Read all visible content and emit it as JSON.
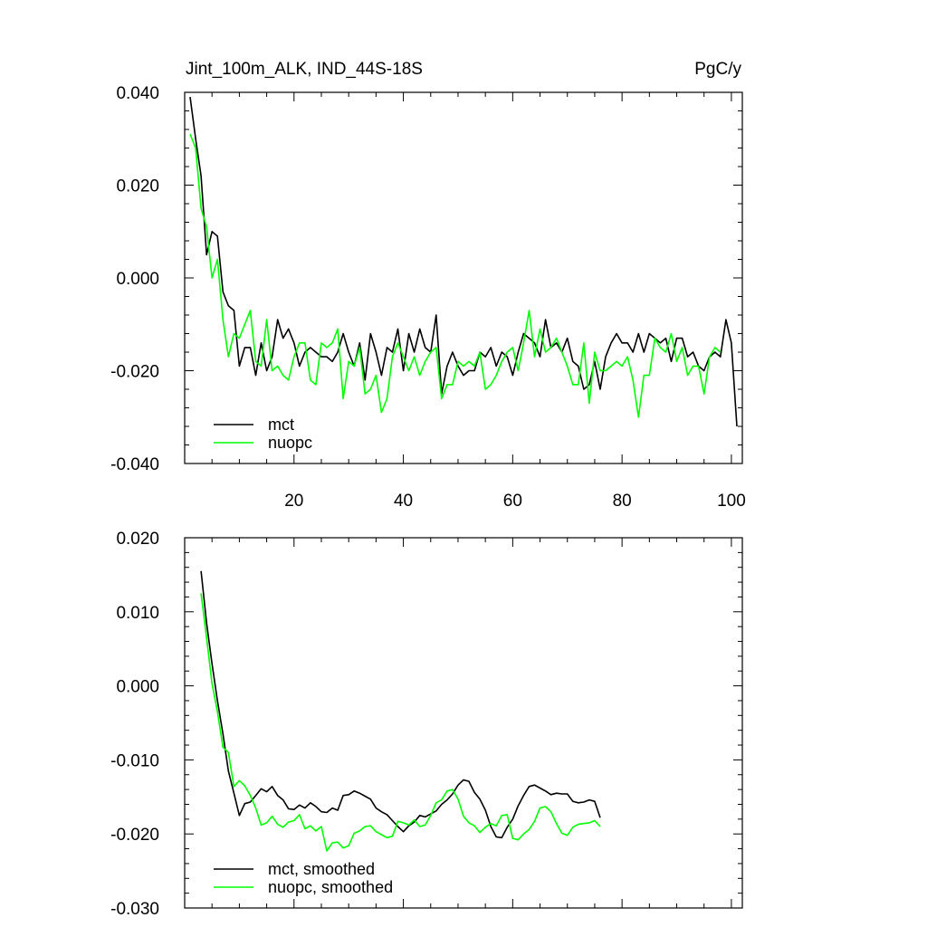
{
  "chart_data": [
    {
      "type": "line",
      "title_left": "Jint_100m_ALK, IND_44S-18S",
      "title_right": "PgC/y",
      "xlabel": "",
      "ylabel": "",
      "xlim": [
        0,
        102
      ],
      "ylim": [
        -0.04,
        0.04
      ],
      "x_ticks": [
        20,
        40,
        60,
        80,
        100
      ],
      "x_tick_labels": [
        "20",
        "40",
        "60",
        "80",
        "100"
      ],
      "y_ticks": [
        -0.04,
        -0.02,
        0.0,
        0.02,
        0.04
      ],
      "y_tick_labels": [
        "-0.040",
        "-0.020",
        "0.000",
        "0.020",
        "0.040"
      ],
      "legend_position": "bottom-left",
      "grid": false,
      "series": [
        {
          "name": "mct",
          "color": "#000000",
          "x_start": 1,
          "values": [
            0.039,
            0.03,
            0.022,
            0.005,
            0.01,
            0.009,
            -0.003,
            -0.006,
            -0.007,
            -0.019,
            -0.015,
            -0.015,
            -0.021,
            -0.014,
            -0.02,
            -0.017,
            -0.009,
            -0.013,
            -0.011,
            -0.014,
            -0.019,
            -0.016,
            -0.015,
            -0.016,
            -0.017,
            -0.017,
            -0.018,
            -0.016,
            -0.012,
            -0.016,
            -0.019,
            -0.014,
            -0.022,
            -0.012,
            -0.016,
            -0.021,
            -0.015,
            -0.016,
            -0.011,
            -0.02,
            -0.012,
            -0.016,
            -0.011,
            -0.015,
            -0.016,
            -0.008,
            -0.025,
            -0.019,
            -0.016,
            -0.019,
            -0.021,
            -0.02,
            -0.02,
            -0.016,
            -0.017,
            -0.015,
            -0.019,
            -0.016,
            -0.017,
            -0.021,
            -0.016,
            -0.012,
            -0.013,
            -0.014,
            -0.017,
            -0.009,
            -0.015,
            -0.014,
            -0.016,
            -0.013,
            -0.018,
            -0.019,
            -0.024,
            -0.023,
            -0.018,
            -0.024,
            -0.017,
            -0.014,
            -0.012,
            -0.014,
            -0.014,
            -0.016,
            -0.012,
            -0.016,
            -0.012,
            -0.013,
            -0.014,
            -0.013,
            -0.018,
            -0.013,
            -0.013,
            -0.017,
            -0.016,
            -0.019,
            -0.02,
            -0.017,
            -0.016,
            -0.017,
            -0.009,
            -0.014,
            -0.032
          ]
        },
        {
          "name": "nuopc",
          "color": "#00ff00",
          "x_start": 1,
          "values": [
            0.031,
            0.028,
            0.015,
            0.011,
            0.0,
            0.004,
            -0.009,
            -0.017,
            -0.012,
            -0.013,
            -0.01,
            -0.007,
            -0.018,
            -0.019,
            -0.009,
            -0.02,
            -0.019,
            -0.021,
            -0.022,
            -0.017,
            -0.014,
            -0.014,
            -0.022,
            -0.023,
            -0.014,
            -0.015,
            -0.014,
            -0.011,
            -0.026,
            -0.018,
            -0.019,
            -0.015,
            -0.025,
            -0.024,
            -0.021,
            -0.029,
            -0.026,
            -0.017,
            -0.014,
            -0.017,
            -0.02,
            -0.017,
            -0.021,
            -0.018,
            -0.016,
            -0.015,
            -0.026,
            -0.023,
            -0.023,
            -0.018,
            -0.019,
            -0.018,
            -0.019,
            -0.016,
            -0.024,
            -0.023,
            -0.021,
            -0.018,
            -0.016,
            -0.015,
            -0.02,
            -0.014,
            -0.007,
            -0.017,
            -0.011,
            -0.016,
            -0.015,
            -0.013,
            -0.016,
            -0.019,
            -0.023,
            -0.023,
            -0.014,
            -0.027,
            -0.016,
            -0.02,
            -0.02,
            -0.019,
            -0.018,
            -0.019,
            -0.017,
            -0.022,
            -0.03,
            -0.021,
            -0.021,
            -0.013,
            -0.015,
            -0.016,
            -0.012,
            -0.018,
            -0.015,
            -0.021,
            -0.019,
            -0.019,
            -0.025,
            -0.017,
            -0.015,
            -0.016
          ]
        }
      ]
    },
    {
      "type": "line",
      "xlabel": "",
      "ylabel": "",
      "xlim": [
        0,
        102
      ],
      "ylim": [
        -0.03,
        0.02
      ],
      "x_ticks": [
        20,
        40,
        60,
        80,
        100
      ],
      "y_ticks": [
        -0.03,
        -0.02,
        -0.01,
        0.0,
        0.01,
        0.02
      ],
      "y_tick_labels": [
        "-0.030",
        "-0.020",
        "-0.010",
        "0.000",
        "0.010",
        "0.020"
      ],
      "legend_position": "bottom-left",
      "grid": false,
      "series": [
        {
          "name": "mct, smoothed",
          "color": "#000000",
          "x_start": 3,
          "values": [
            0.0155,
            0.0085,
            0.003,
            -0.002,
            -0.0065,
            -0.0115,
            -0.0145,
            -0.0175,
            -0.0159,
            -0.0157,
            -0.0148,
            -0.0139,
            -0.0143,
            -0.0136,
            -0.0148,
            -0.0154,
            -0.0166,
            -0.0167,
            -0.0161,
            -0.0165,
            -0.0158,
            -0.0163,
            -0.017,
            -0.0171,
            -0.0165,
            -0.0168,
            -0.0148,
            -0.0147,
            -0.0142,
            -0.0145,
            -0.0149,
            -0.0153,
            -0.0165,
            -0.017,
            -0.0174,
            -0.0182,
            -0.019,
            -0.0197,
            -0.0189,
            -0.0184,
            -0.0175,
            -0.0177,
            -0.0173,
            -0.0169,
            -0.016,
            -0.0154,
            -0.0146,
            -0.0134,
            -0.0127,
            -0.0129,
            -0.0144,
            -0.0153,
            -0.0168,
            -0.019,
            -0.0204,
            -0.0205,
            -0.0191,
            -0.018,
            -0.0162,
            -0.0148,
            -0.0136,
            -0.0134,
            -0.0138,
            -0.0142,
            -0.0147,
            -0.0145,
            -0.0146,
            -0.0146,
            -0.0156,
            -0.0158,
            -0.0157,
            -0.0154,
            -0.0156,
            -0.0178
          ]
        },
        {
          "name": "nuopc, smoothed",
          "color": "#00ff00",
          "x_start": 3,
          "values": [
            0.0125,
            0.0065,
            0.0003,
            -0.0035,
            -0.0083,
            -0.009,
            -0.0136,
            -0.0128,
            -0.0135,
            -0.0148,
            -0.0165,
            -0.0188,
            -0.0185,
            -0.0176,
            -0.0187,
            -0.0191,
            -0.0184,
            -0.0182,
            -0.0174,
            -0.0193,
            -0.0189,
            -0.0196,
            -0.019,
            -0.0223,
            -0.0212,
            -0.0211,
            -0.0219,
            -0.0216,
            -0.0199,
            -0.0196,
            -0.019,
            -0.0189,
            -0.0197,
            -0.0201,
            -0.0205,
            -0.0203,
            -0.0183,
            -0.0185,
            -0.0188,
            -0.0181,
            -0.019,
            -0.0188,
            -0.0175,
            -0.0158,
            -0.0154,
            -0.0142,
            -0.014,
            -0.0153,
            -0.0176,
            -0.0185,
            -0.0189,
            -0.0198,
            -0.0191,
            -0.0186,
            -0.0189,
            -0.0175,
            -0.0174,
            -0.0206,
            -0.0208,
            -0.02,
            -0.0194,
            -0.0183,
            -0.0165,
            -0.0163,
            -0.017,
            -0.0186,
            -0.0199,
            -0.0202,
            -0.0191,
            -0.0187,
            -0.0186,
            -0.0185,
            -0.0182,
            -0.019
          ]
        }
      ]
    }
  ]
}
